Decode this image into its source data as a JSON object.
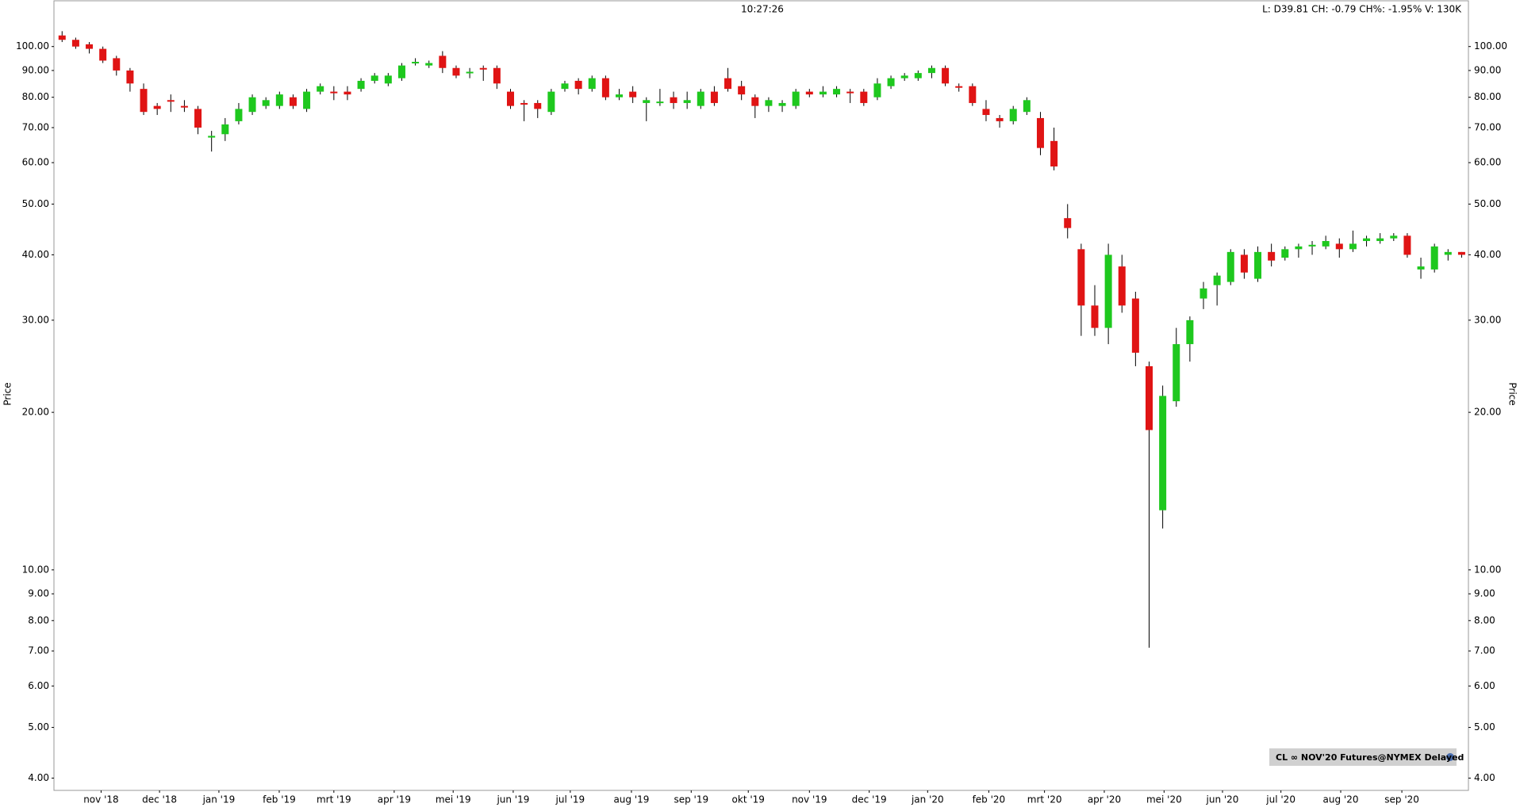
{
  "chart_data": {
    "type": "candlestick",
    "clock": "10:27:26",
    "quote": "L: D39.81 CH: -0.79 CH%: -1.95% V: 130K",
    "y_label": "Price",
    "badge": "CL  ∞ NOV'20 Futures@NYMEX Delayed",
    "log_scale": true,
    "up_color": "#1ec81e",
    "down_color": "#e01414",
    "ylim": [
      3.79,
      122.3
    ],
    "yticks": [
      {
        "value": 4,
        "label": "4.00"
      },
      {
        "value": 5,
        "label": "5.00"
      },
      {
        "value": 6,
        "label": "6.00"
      },
      {
        "value": 7,
        "label": "7.00"
      },
      {
        "value": 8,
        "label": "8.00"
      },
      {
        "value": 9,
        "label": "9.00"
      },
      {
        "value": 10,
        "label": "10.00"
      },
      {
        "value": 20,
        "label": "20.00"
      },
      {
        "value": 30,
        "label": "30.00"
      },
      {
        "value": 40,
        "label": "40.00"
      },
      {
        "value": 50,
        "label": "50.00"
      },
      {
        "value": 60,
        "label": "60.00"
      },
      {
        "value": 70,
        "label": "70.00"
      },
      {
        "value": 80,
        "label": "80.00"
      },
      {
        "value": 90,
        "label": "90.00"
      },
      {
        "value": 100,
        "label": "100.00"
      }
    ],
    "xlim": [
      -0.6,
      103.5
    ],
    "xticks": [
      {
        "value": 2.87,
        "label": "nov '18"
      },
      {
        "value": 7.17,
        "label": "dec '18"
      },
      {
        "value": 11.54,
        "label": "jan '19"
      },
      {
        "value": 15.98,
        "label": "feb '19"
      },
      {
        "value": 20.0,
        "label": "mrt '19"
      },
      {
        "value": 24.44,
        "label": "apr '19"
      },
      {
        "value": 28.78,
        "label": "mei '19"
      },
      {
        "value": 33.2,
        "label": "jun '19"
      },
      {
        "value": 37.4,
        "label": "jul '19"
      },
      {
        "value": 41.9,
        "label": "aug '19"
      },
      {
        "value": 46.3,
        "label": "sep '19"
      },
      {
        "value": 50.5,
        "label": "okt '19"
      },
      {
        "value": 55.0,
        "label": "nov '19"
      },
      {
        "value": 59.4,
        "label": "dec '19"
      },
      {
        "value": 63.7,
        "label": "jan '20"
      },
      {
        "value": 68.2,
        "label": "feb '20"
      },
      {
        "value": 72.3,
        "label": "mrt '20"
      },
      {
        "value": 76.7,
        "label": "apr '20"
      },
      {
        "value": 81.1,
        "label": "mei '20"
      },
      {
        "value": 85.4,
        "label": "jun '20"
      },
      {
        "value": 89.7,
        "label": "jul '20"
      },
      {
        "value": 94.1,
        "label": "aug '20"
      },
      {
        "value": 98.6,
        "label": "sep '20"
      }
    ],
    "candles": {
      "open": [
        105,
        103,
        101,
        99,
        95,
        90,
        83,
        77,
        79,
        77,
        76,
        67,
        68,
        72,
        75,
        77,
        77,
        80,
        76,
        82,
        82,
        82,
        83,
        86,
        85,
        87,
        93,
        92,
        96,
        91,
        89,
        91,
        91,
        82,
        78,
        78,
        75,
        83,
        86,
        83,
        87,
        80,
        82,
        78,
        78,
        80,
        78,
        77,
        82,
        87,
        84,
        80,
        77,
        77,
        77,
        82,
        81,
        81,
        82,
        82,
        80,
        84,
        87,
        87,
        89,
        91,
        84,
        84,
        76,
        73,
        72,
        75,
        73,
        66,
        47,
        41,
        32,
        29,
        38,
        33,
        24.5,
        13,
        21,
        27,
        33,
        35,
        35.5,
        40,
        36,
        40.5,
        39.5,
        41,
        41.5,
        41.5,
        42,
        41,
        42.5,
        42.5,
        43,
        43.5,
        37.5,
        37.5,
        40,
        40.5
      ],
      "high": [
        107,
        104,
        102,
        100,
        96,
        91,
        85,
        78,
        81,
        79,
        77,
        69,
        73,
        78,
        81,
        80,
        82,
        81,
        83,
        85,
        84,
        84,
        87,
        89,
        89,
        93,
        95,
        94,
        98,
        92,
        91,
        92,
        92,
        83,
        79,
        79,
        83,
        86,
        87,
        88,
        88,
        83,
        84,
        80,
        83,
        82,
        82,
        83,
        84,
        91,
        86,
        81,
        80,
        79,
        83,
        83,
        84,
        84,
        83,
        83,
        87,
        88,
        89,
        90,
        92,
        92,
        85,
        85,
        79,
        74,
        77,
        80,
        75,
        70,
        50,
        42,
        35,
        42,
        40,
        34,
        25,
        22.5,
        29,
        30.5,
        35.5,
        37,
        41,
        41,
        41.5,
        42,
        41.5,
        42,
        42.5,
        43.5,
        43,
        44.5,
        43.5,
        44,
        44,
        44,
        39.5,
        42,
        41,
        40.5
      ],
      "low": [
        102,
        99,
        97,
        93,
        88,
        82,
        74,
        74,
        75,
        75,
        68,
        63,
        66,
        71,
        74,
        76,
        76,
        76,
        75,
        81,
        79,
        79,
        82,
        85,
        84,
        86,
        92,
        91,
        89,
        87,
        87,
        86,
        83,
        76,
        72,
        73,
        74,
        82,
        81,
        82,
        79,
        79,
        78,
        72,
        77,
        76,
        76,
        76,
        77,
        82,
        79,
        73,
        75,
        75,
        76,
        80,
        80,
        80,
        78,
        77,
        79,
        83,
        86,
        86,
        87,
        84,
        82,
        77,
        72,
        70,
        71,
        74,
        62,
        58,
        43,
        28,
        28,
        27,
        31,
        24.5,
        7.1,
        12,
        20.5,
        25,
        31.5,
        32,
        35,
        36,
        35.5,
        38,
        39,
        39.5,
        40,
        41,
        39.5,
        40.5,
        41.5,
        42,
        42.5,
        39.5,
        36,
        37,
        39,
        39.5
      ],
      "close": [
        103,
        100,
        99,
        94,
        90,
        85,
        75,
        76,
        78.5,
        76.5,
        70,
        67.5,
        71,
        76,
        80,
        79,
        81,
        77,
        82,
        84,
        81.5,
        81,
        86,
        88,
        88,
        92,
        93.5,
        93,
        91,
        88,
        89.5,
        90.5,
        85,
        77,
        77.5,
        76,
        82,
        85,
        83,
        87,
        80,
        81,
        80,
        79,
        78.5,
        78,
        79,
        82,
        78,
        83,
        81,
        77,
        79,
        78,
        82,
        81,
        82,
        83,
        81.5,
        78,
        85,
        87,
        88,
        89,
        91,
        85,
        83.5,
        78,
        74,
        72,
        76,
        79,
        64,
        59,
        45,
        32,
        29,
        40,
        32,
        26,
        18.5,
        21.5,
        27,
        30,
        34.5,
        36.5,
        40.5,
        37,
        40.5,
        39,
        41,
        41.5,
        41.8,
        42.5,
        41,
        42,
        43,
        43,
        43.5,
        40,
        38,
        41.5,
        40.5,
        40
      ]
    }
  }
}
